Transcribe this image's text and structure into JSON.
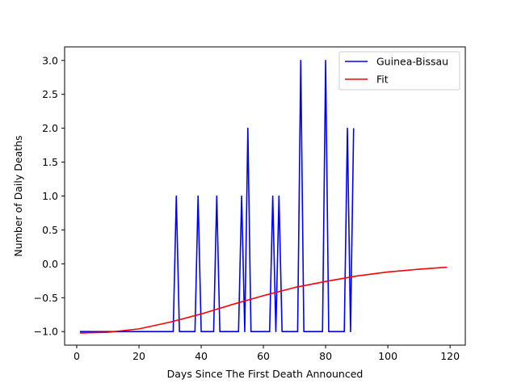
{
  "chart_data": {
    "type": "line",
    "xlabel": "Days Since The First Death Announced",
    "ylabel": "Number of Daily Deaths",
    "xlim": [
      -3.9,
      124.9
    ],
    "ylim": [
      -1.2,
      3.2
    ],
    "xticks": [
      0,
      20,
      40,
      60,
      80,
      100,
      120
    ],
    "yticks": [
      -1.0,
      -0.5,
      0.0,
      0.5,
      1.0,
      1.5,
      2.0,
      2.5,
      3.0
    ],
    "ytick_labels": [
      "−1.0",
      "−0.5",
      "0.0",
      "0.5",
      "1.0",
      "1.5",
      "2.0",
      "2.5",
      "3.0"
    ],
    "legend_position": "top-right",
    "grid": false,
    "series": [
      {
        "name": "Guinea-Bissau",
        "color": "#0000ff",
        "x": [
          1,
          31,
          32,
          33,
          38,
          39,
          40,
          44,
          45,
          46,
          52,
          53,
          54,
          55,
          56,
          62,
          63,
          64,
          65,
          66,
          71,
          72,
          73,
          79,
          80,
          81,
          86,
          87,
          88,
          89
        ],
        "y": [
          -1,
          -1,
          1,
          -1,
          -1,
          1,
          -1,
          -1,
          1,
          -1,
          -1,
          1,
          -1,
          2,
          -1,
          -1,
          1,
          -1,
          1,
          -1,
          -1,
          3,
          -1,
          -1,
          3,
          -1,
          -1,
          2,
          -1,
          2
        ]
      },
      {
        "name": "Fit",
        "color": "#ff0000",
        "x": [
          1,
          10,
          20,
          30,
          40,
          50,
          60,
          70,
          80,
          90,
          100,
          110,
          119
        ],
        "y": [
          -1.02,
          -1.01,
          -0.96,
          -0.86,
          -0.74,
          -0.6,
          -0.47,
          -0.35,
          -0.26,
          -0.18,
          -0.12,
          -0.08,
          -0.05
        ]
      }
    ]
  }
}
